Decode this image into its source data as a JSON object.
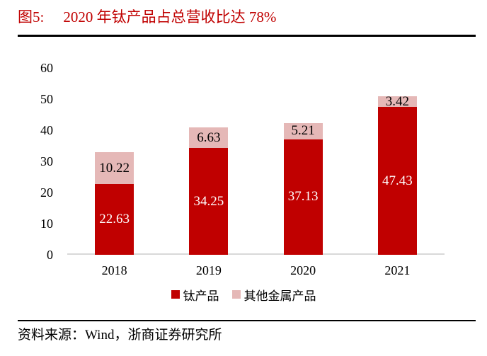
{
  "header": {
    "figure_label": "图5:",
    "title": "2020 年钛产品占总营收比达 78%",
    "title_color": "#C00000"
  },
  "chart_data": {
    "type": "bar",
    "stacked": true,
    "title": "2020 年钛产品占总营收比达 78%",
    "categories": [
      "2018",
      "2019",
      "2020",
      "2021"
    ],
    "series": [
      {
        "name": "钛产品",
        "color": "#C00000",
        "label_color": "#FFFFFF",
        "values": [
          22.63,
          34.25,
          37.13,
          47.43
        ]
      },
      {
        "name": "其他金属产品",
        "color": "#E5B8B7",
        "label_color": "#000000",
        "values": [
          10.22,
          6.63,
          5.21,
          3.42
        ]
      }
    ],
    "xlabel": "",
    "ylabel": "",
    "ylim": [
      0,
      60
    ],
    "ytick_step": 10,
    "grid": false,
    "legend_position": "bottom",
    "axis_line_color": "#D9D9D9"
  },
  "footer": {
    "source": "资料来源：Wind，浙商证券研究所"
  }
}
